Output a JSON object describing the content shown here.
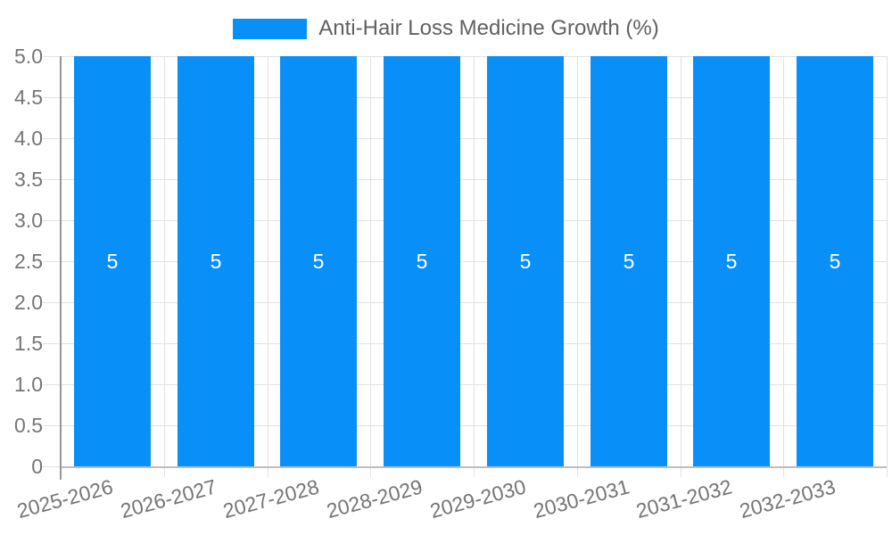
{
  "legend": {
    "label": "Anti-Hair Loss Medicine Growth (%)",
    "swatch_color": "#0990F8"
  },
  "chart_data": {
    "type": "bar",
    "title": "",
    "xlabel": "",
    "ylabel": "",
    "categories": [
      "2025-2026",
      "2026-2027",
      "2027-2028",
      "2028-2029",
      "2029-2030",
      "2030-2031",
      "2031-2032",
      "2032-2033"
    ],
    "series": [
      {
        "name": "Anti-Hair Loss Medicine Growth (%)",
        "values": [
          5,
          5,
          5,
          5,
          5,
          5,
          5,
          5
        ],
        "color": "#0990F8"
      }
    ],
    "bar_value_labels": [
      "5",
      "5",
      "5",
      "5",
      "5",
      "5",
      "5",
      "5"
    ],
    "ylim": [
      0,
      5
    ],
    "ytick_step": 0.5,
    "ytick_labels": [
      "0",
      "0.5",
      "1.0",
      "1.5",
      "2.0",
      "2.5",
      "3.0",
      "3.5",
      "4.0",
      "4.5",
      "5.0"
    ],
    "grid": true,
    "legend_position": "top-center",
    "x_label_rotation_deg": -15,
    "colors": {
      "bar": "#0990F8",
      "gridline": "#e2e2e2",
      "y_axis_line": "#969696",
      "x_baseline": "#bdbdbd",
      "tick_text": "#757575",
      "legend_text": "#616161",
      "bar_value_text": "#ffffff",
      "background": "#ffffff"
    }
  }
}
